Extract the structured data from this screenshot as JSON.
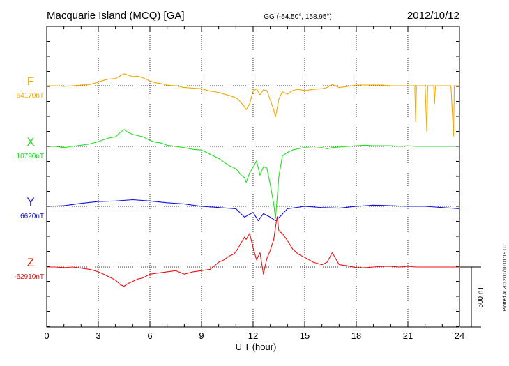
{
  "header": {
    "station": "Macquarie Island (MCQ)  [GA]",
    "coords": "GG (-54.50°, 158.95°)",
    "date": "2012/10/12"
  },
  "plotted_note": "Plotted at 2012/11/10 01:19 UT",
  "scale_label": "500 nT",
  "chart_data": {
    "type": "line",
    "title": "Macquarie Island (MCQ)  [GA]",
    "xlabel": "U T (hour)",
    "ylabel": "",
    "xlim": [
      0,
      24
    ],
    "xticks": [
      0,
      3,
      6,
      9,
      12,
      15,
      18,
      21,
      24
    ],
    "grid": true,
    "scale_bar_nT": 500,
    "series": [
      {
        "name": "F",
        "baseline_label": "64170nT",
        "color": "#f0a800",
        "x": [
          0,
          0.5,
          1,
          1.5,
          2,
          2.5,
          3,
          3.3,
          3.6,
          4,
          4.3,
          4.5,
          4.7,
          5,
          5.3,
          5.6,
          6,
          6.3,
          6.6,
          7,
          7.5,
          8,
          8.5,
          9,
          9.5,
          10,
          10.3,
          10.6,
          10.9,
          11.1,
          11.3,
          11.5,
          11.6,
          11.8,
          12,
          12.2,
          12.4,
          12.6,
          12.8,
          13,
          13.2,
          13.3,
          13.4,
          13.5,
          13.7,
          14,
          14.3,
          14.6,
          15,
          15.5,
          16,
          16.3,
          16.6,
          17,
          17.5,
          18,
          18.5,
          19,
          19.5,
          20,
          20.5,
          21,
          21.4,
          21.45,
          21.5,
          21.8,
          22,
          22.1,
          22.15,
          22.2,
          22.5,
          22.55,
          22.6,
          23,
          23.5,
          23.65,
          23.7,
          23.75,
          24
        ],
        "values": [
          0,
          0,
          -5,
          0,
          5,
          10,
          30,
          45,
          55,
          60,
          85,
          100,
          90,
          75,
          80,
          65,
          40,
          25,
          20,
          5,
          0,
          -15,
          -20,
          -25,
          -45,
          -55,
          -70,
          -80,
          -95,
          -110,
          -140,
          -175,
          -200,
          -150,
          -45,
          -25,
          -75,
          -35,
          -40,
          -120,
          -200,
          -260,
          -190,
          -110,
          -50,
          -70,
          -40,
          -30,
          -40,
          -30,
          -25,
          -15,
          10,
          -15,
          -5,
          5,
          5,
          5,
          5,
          0,
          0,
          0,
          0,
          -300,
          0,
          0,
          0,
          -380,
          0,
          0,
          0,
          -150,
          0,
          0,
          0,
          -420,
          0,
          0,
          0
        ]
      },
      {
        "name": "X",
        "baseline_label": "10790nT",
        "color": "#22dd22",
        "x": [
          0,
          0.5,
          1,
          1.5,
          2,
          2.5,
          3,
          3.3,
          3.6,
          4,
          4.3,
          4.5,
          4.7,
          5,
          5.3,
          5.6,
          6,
          6.3,
          6.6,
          7,
          7.5,
          8,
          8.5,
          9,
          9.5,
          10,
          10.3,
          10.6,
          10.9,
          11.1,
          11.3,
          11.5,
          11.6,
          11.8,
          12,
          12.2,
          12.4,
          12.6,
          12.8,
          13,
          13.2,
          13.3,
          13.4,
          13.5,
          13.7,
          14,
          14.3,
          14.6,
          15,
          15.5,
          16,
          16.3,
          16.6,
          17,
          17.5,
          18,
          18.5,
          19,
          19.5,
          20,
          20.5,
          21,
          21.5,
          22,
          22.5,
          23,
          23.5,
          24
        ],
        "values": [
          0,
          0,
          -10,
          0,
          10,
          20,
          40,
          55,
          70,
          80,
          120,
          140,
          120,
          100,
          90,
          80,
          50,
          35,
          30,
          10,
          0,
          -10,
          -25,
          -30,
          -65,
          -100,
          -130,
          -160,
          -180,
          -200,
          -240,
          -260,
          -300,
          -220,
          -175,
          -120,
          -240,
          -170,
          -180,
          -320,
          -480,
          -600,
          -430,
          -250,
          -80,
          -50,
          -30,
          -20,
          -10,
          -15,
          -10,
          -20,
          -10,
          -5,
          0,
          5,
          10,
          5,
          5,
          5,
          0,
          5,
          0,
          0,
          0,
          0,
          0,
          0
        ]
      },
      {
        "name": "Y",
        "baseline_label": "6620nT",
        "color": "#1111dd",
        "x": [
          0,
          1,
          2,
          3,
          4,
          5,
          6,
          7,
          8,
          9,
          10,
          11,
          11.5,
          12,
          12.3,
          12.6,
          13,
          13.3,
          13.6,
          14,
          15,
          16,
          17,
          18,
          19,
          20,
          21,
          22,
          23,
          24
        ],
        "values": [
          0,
          5,
          25,
          40,
          45,
          55,
          45,
          30,
          20,
          0,
          -10,
          -20,
          -90,
          -50,
          -120,
          -60,
          -90,
          -120,
          -80,
          -20,
          0,
          -10,
          -15,
          0,
          10,
          5,
          0,
          0,
          -10,
          -20
        ]
      },
      {
        "name": "Z",
        "baseline_label": "-62910nT",
        "color": "#ee1111",
        "x": [
          0,
          0.5,
          1,
          1.5,
          2,
          2.5,
          3,
          3.3,
          3.6,
          4,
          4.3,
          4.5,
          4.7,
          5,
          5.3,
          5.6,
          6,
          6.5,
          7,
          7.5,
          8,
          8.5,
          9,
          9.5,
          10,
          10.3,
          10.6,
          10.9,
          11.1,
          11.3,
          11.5,
          11.6,
          11.8,
          12,
          12.2,
          12.4,
          12.6,
          12.8,
          13,
          13.2,
          13.3,
          13.4,
          13.5,
          13.7,
          14,
          14.3,
          14.6,
          15,
          15.5,
          16,
          16.3,
          16.6,
          17,
          17.5,
          18,
          18.5,
          19,
          19.5,
          20,
          20.5,
          21,
          21.5,
          22,
          22.5,
          23,
          23.5,
          24
        ],
        "values": [
          0,
          0,
          -5,
          0,
          -10,
          -20,
          -40,
          -60,
          -80,
          -110,
          -150,
          -160,
          -140,
          -120,
          -100,
          -90,
          -60,
          -50,
          -40,
          -30,
          -60,
          -40,
          -30,
          -20,
          40,
          60,
          90,
          110,
          150,
          200,
          250,
          230,
          280,
          160,
          60,
          120,
          -60,
          70,
          140,
          230,
          330,
          420,
          300,
          280,
          220,
          150,
          110,
          80,
          40,
          20,
          40,
          120,
          20,
          10,
          -5,
          -5,
          0,
          5,
          5,
          0,
          5,
          0,
          0,
          0,
          0,
          0,
          0
        ]
      }
    ]
  }
}
